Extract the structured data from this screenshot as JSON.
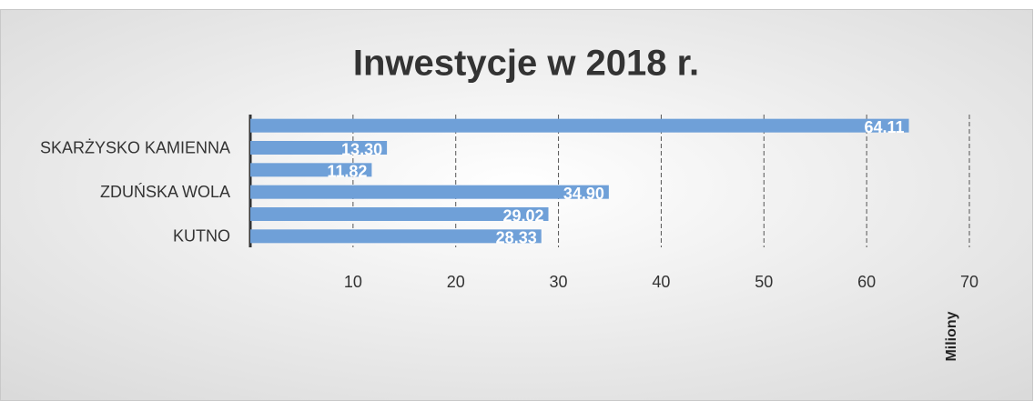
{
  "chart_data": {
    "type": "bar",
    "orientation": "horizontal",
    "title": "Inwestycje w 2018 r.",
    "categories": [
      "KUTNO",
      null,
      "ZDUŃSKA WOLA",
      null,
      "SKARŻYSKO KAMIENNA",
      null
    ],
    "values": [
      28.33,
      29.02,
      34.9,
      11.82,
      13.3,
      64.11
    ],
    "value_labels": [
      "28.33",
      "29.02",
      "34.90",
      "11.82",
      "13.30",
      "64.11"
    ],
    "color": "#6fa0d8",
    "xlim": [
      0,
      70
    ],
    "xticks": [
      10,
      20,
      30,
      40,
      50,
      60,
      70
    ],
    "x_axis_label": "Miliony",
    "grid": true
  }
}
